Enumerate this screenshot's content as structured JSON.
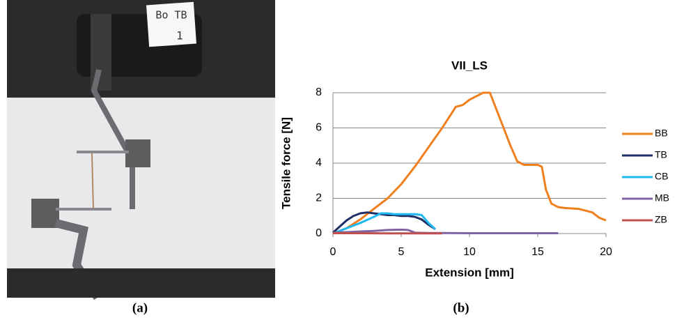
{
  "photo_label": [
    "Bo TB",
    "1"
  ],
  "panel_labels": [
    "(a)",
    "(b)"
  ],
  "chart_data": {
    "type": "line",
    "title": "VII_LS",
    "x_label": "Extension [mm]",
    "y_label": "Tensile force [N]",
    "xlim": [
      0,
      20
    ],
    "xticks": [
      0,
      5,
      10,
      15,
      20
    ],
    "ylim": [
      0,
      8
    ],
    "yticks": [
      0,
      2,
      4,
      6,
      8
    ],
    "grid": true,
    "legend": "right",
    "series": [
      {
        "name": "BB",
        "color": "#f07f1e",
        "x": [
          0,
          1,
          2,
          3,
          4,
          5,
          6,
          7,
          8,
          8.5,
          9,
          9.5,
          10,
          10.5,
          11,
          11.5,
          12,
          12.5,
          13,
          13.5,
          14,
          14.5,
          15,
          15.3,
          15.6,
          16,
          16.5,
          17,
          18,
          19,
          19.5,
          20
        ],
        "values": [
          0,
          0.3,
          0.8,
          1.4,
          2.0,
          2.8,
          3.8,
          4.9,
          6.0,
          6.6,
          7.2,
          7.3,
          7.6,
          7.8,
          8.0,
          8.0,
          7.0,
          6.0,
          5.0,
          4.1,
          3.9,
          3.9,
          3.9,
          3.8,
          2.5,
          1.7,
          1.5,
          1.45,
          1.4,
          1.2,
          0.9,
          0.75
        ]
      },
      {
        "name": "TB",
        "color": "#1f2f66",
        "x": [
          0,
          0.5,
          1,
          1.5,
          2,
          2.5,
          3,
          3.5,
          4,
          4.5,
          5,
          5.5,
          6,
          6.5,
          7,
          7.5
        ],
        "values": [
          0.05,
          0.4,
          0.75,
          1.0,
          1.15,
          1.2,
          1.15,
          1.1,
          1.05,
          1.05,
          1.0,
          1.0,
          0.95,
          0.8,
          0.5,
          0.25
        ]
      },
      {
        "name": "CB",
        "color": "#1fb8f0",
        "x": [
          0,
          1,
          2,
          3,
          3.5,
          4,
          4.5,
          5,
          5.5,
          6,
          6.5,
          7,
          7.5
        ],
        "values": [
          0,
          0.3,
          0.6,
          0.95,
          1.15,
          1.15,
          1.1,
          1.1,
          1.1,
          1.1,
          1.05,
          0.6,
          0.25
        ]
      },
      {
        "name": "MB",
        "color": "#8064a2",
        "x": [
          0,
          1,
          2,
          3,
          4,
          5,
          5.5,
          6,
          7,
          10,
          16.5
        ],
        "values": [
          0.05,
          0.08,
          0.12,
          0.15,
          0.2,
          0.22,
          0.2,
          0.05,
          0.03,
          0.02,
          0.02
        ]
      },
      {
        "name": "ZB",
        "color": "#c0504d",
        "x": [
          0,
          2,
          4,
          6,
          8
        ],
        "values": [
          0.02,
          0.02,
          0.01,
          0.01,
          0.01
        ]
      }
    ]
  }
}
